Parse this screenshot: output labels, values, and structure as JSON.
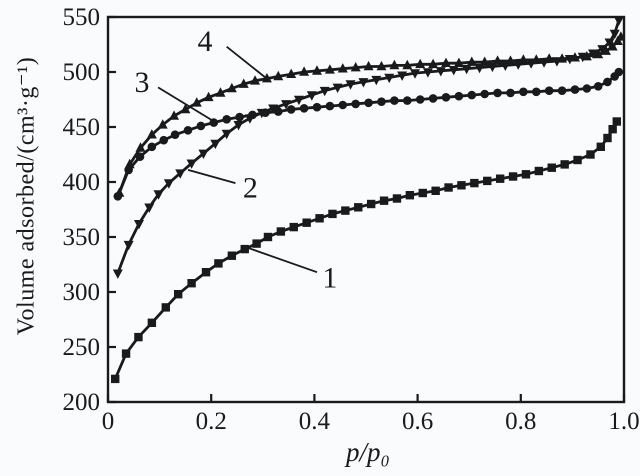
{
  "colors": {
    "ink": "#1a1a1a",
    "background": "#fafbfd"
  },
  "chart_data": {
    "type": "line",
    "title": "",
    "xlabel": "p/p₀",
    "ylabel": "Volume adsorbed/(cm³·g⁻¹)",
    "xlim": [
      0,
      1.0
    ],
    "ylim": [
      200,
      550
    ],
    "x_ticks": [
      0,
      0.2,
      0.4,
      0.6,
      0.8,
      1.0
    ],
    "x_tick_labels": [
      "0",
      "0.2",
      "0.4",
      "0.6",
      "0.8",
      "1.0"
    ],
    "y_ticks": [
      200,
      250,
      300,
      350,
      400,
      450,
      500,
      550
    ],
    "y_tick_labels": [
      "200",
      "250",
      "300",
      "350",
      "400",
      "450",
      "500",
      "550"
    ],
    "grid": false,
    "legend": "none",
    "series": [
      {
        "name": "1",
        "marker": "square",
        "points": [
          [
            0.014,
            221
          ],
          [
            0.035,
            244
          ],
          [
            0.059,
            259
          ],
          [
            0.085,
            272
          ],
          [
            0.112,
            286
          ],
          [
            0.136,
            298
          ],
          [
            0.162,
            308
          ],
          [
            0.19,
            318
          ],
          [
            0.214,
            326
          ],
          [
            0.24,
            333
          ],
          [
            0.265,
            339
          ],
          [
            0.288,
            344
          ],
          [
            0.31,
            350
          ],
          [
            0.335,
            355
          ],
          [
            0.36,
            359
          ],
          [
            0.385,
            363
          ],
          [
            0.41,
            367
          ],
          [
            0.435,
            371
          ],
          [
            0.46,
            374
          ],
          [
            0.485,
            377
          ],
          [
            0.51,
            380
          ],
          [
            0.535,
            383
          ],
          [
            0.56,
            385
          ],
          [
            0.585,
            388
          ],
          [
            0.61,
            390
          ],
          [
            0.635,
            392
          ],
          [
            0.66,
            395
          ],
          [
            0.685,
            397
          ],
          [
            0.71,
            399
          ],
          [
            0.735,
            401
          ],
          [
            0.76,
            403
          ],
          [
            0.785,
            405
          ],
          [
            0.81,
            407
          ],
          [
            0.835,
            410
          ],
          [
            0.86,
            413
          ],
          [
            0.885,
            416
          ],
          [
            0.91,
            420
          ],
          [
            0.935,
            425
          ],
          [
            0.955,
            432
          ],
          [
            0.968,
            440
          ],
          [
            0.978,
            448
          ],
          [
            0.986,
            455
          ]
        ]
      },
      {
        "name": "2",
        "marker": "triangle-down",
        "points": [
          [
            0.019,
            317
          ],
          [
            0.04,
            343
          ],
          [
            0.06,
            362
          ],
          [
            0.08,
            377
          ],
          [
            0.098,
            389
          ],
          [
            0.118,
            399
          ],
          [
            0.14,
            408
          ],
          [
            0.162,
            417
          ],
          [
            0.185,
            426
          ],
          [
            0.208,
            435
          ],
          [
            0.23,
            444
          ],
          [
            0.253,
            452
          ],
          [
            0.275,
            458
          ],
          [
            0.298,
            463
          ],
          [
            0.32,
            467
          ],
          [
            0.345,
            471
          ],
          [
            0.37,
            475
          ],
          [
            0.395,
            479
          ],
          [
            0.42,
            483
          ],
          [
            0.445,
            486
          ],
          [
            0.47,
            489
          ],
          [
            0.495,
            491
          ],
          [
            0.52,
            493
          ],
          [
            0.545,
            495
          ],
          [
            0.57,
            497
          ],
          [
            0.595,
            499
          ],
          [
            0.62,
            500
          ],
          [
            0.645,
            501
          ],
          [
            0.67,
            502
          ],
          [
            0.695,
            503
          ],
          [
            0.72,
            504
          ],
          [
            0.745,
            505
          ],
          [
            0.77,
            506
          ],
          [
            0.795,
            507
          ],
          [
            0.82,
            508
          ],
          [
            0.845,
            509
          ],
          [
            0.87,
            510
          ],
          [
            0.895,
            512
          ],
          [
            0.92,
            514
          ],
          [
            0.94,
            517
          ],
          [
            0.958,
            521
          ],
          [
            0.972,
            527
          ],
          [
            0.982,
            535
          ],
          [
            0.99,
            547
          ],
          [
            0.995,
            556
          ]
        ]
      },
      {
        "name": "3",
        "marker": "circle",
        "points": [
          [
            0.019,
            387
          ],
          [
            0.04,
            411
          ],
          [
            0.062,
            423
          ],
          [
            0.085,
            432
          ],
          [
            0.108,
            438
          ],
          [
            0.13,
            443
          ],
          [
            0.155,
            447
          ],
          [
            0.18,
            451
          ],
          [
            0.205,
            454
          ],
          [
            0.23,
            457
          ],
          [
            0.255,
            459
          ],
          [
            0.28,
            461
          ],
          [
            0.305,
            463
          ],
          [
            0.33,
            464
          ],
          [
            0.355,
            466
          ],
          [
            0.38,
            467
          ],
          [
            0.405,
            468
          ],
          [
            0.43,
            469
          ],
          [
            0.455,
            470
          ],
          [
            0.48,
            471
          ],
          [
            0.505,
            472
          ],
          [
            0.53,
            473
          ],
          [
            0.555,
            474
          ],
          [
            0.58,
            474
          ],
          [
            0.605,
            475
          ],
          [
            0.63,
            476
          ],
          [
            0.655,
            477
          ],
          [
            0.68,
            478
          ],
          [
            0.705,
            479
          ],
          [
            0.73,
            480
          ],
          [
            0.755,
            481
          ],
          [
            0.78,
            481
          ],
          [
            0.805,
            482
          ],
          [
            0.83,
            482
          ],
          [
            0.855,
            483
          ],
          [
            0.88,
            483
          ],
          [
            0.905,
            484
          ],
          [
            0.928,
            485
          ],
          [
            0.95,
            487
          ],
          [
            0.968,
            491
          ],
          [
            0.982,
            496
          ],
          [
            0.99,
            500
          ]
        ]
      },
      {
        "name": "4",
        "marker": "triangle-up",
        "points": [
          [
            0.022,
            390
          ],
          [
            0.042,
            416
          ],
          [
            0.063,
            431
          ],
          [
            0.085,
            443
          ],
          [
            0.106,
            452
          ],
          [
            0.128,
            460
          ],
          [
            0.15,
            466
          ],
          [
            0.172,
            472
          ],
          [
            0.195,
            477
          ],
          [
            0.218,
            481
          ],
          [
            0.24,
            485
          ],
          [
            0.263,
            489
          ],
          [
            0.285,
            492
          ],
          [
            0.308,
            494
          ],
          [
            0.33,
            496
          ],
          [
            0.355,
            498
          ],
          [
            0.38,
            500
          ],
          [
            0.405,
            501
          ],
          [
            0.43,
            502
          ],
          [
            0.455,
            503
          ],
          [
            0.48,
            504
          ],
          [
            0.505,
            505
          ],
          [
            0.53,
            505
          ],
          [
            0.555,
            506
          ],
          [
            0.58,
            506
          ],
          [
            0.605,
            507
          ],
          [
            0.63,
            507
          ],
          [
            0.655,
            508
          ],
          [
            0.68,
            508
          ],
          [
            0.705,
            509
          ],
          [
            0.73,
            509
          ],
          [
            0.755,
            510
          ],
          [
            0.78,
            510
          ],
          [
            0.805,
            511
          ],
          [
            0.83,
            511
          ],
          [
            0.855,
            512
          ],
          [
            0.88,
            512
          ],
          [
            0.905,
            513
          ],
          [
            0.928,
            514
          ],
          [
            0.95,
            516
          ],
          [
            0.965,
            519
          ],
          [
            0.978,
            523
          ],
          [
            0.988,
            528
          ],
          [
            0.994,
            532
          ]
        ]
      }
    ],
    "annotations": [
      {
        "label": "1",
        "label_x": 0.43,
        "label_y": 313,
        "line": [
          [
            0.405,
            318
          ],
          [
            0.272,
            340
          ]
        ]
      },
      {
        "label": "2",
        "label_x": 0.276,
        "label_y": 395,
        "line": [
          [
            0.247,
            399
          ],
          [
            0.155,
            411
          ]
        ]
      },
      {
        "label": "3",
        "label_x": 0.066,
        "label_y": 491,
        "line": [
          [
            0.097,
            486
          ],
          [
            0.202,
            456
          ]
        ]
      },
      {
        "label": "4",
        "label_x": 0.188,
        "label_y": 528,
        "line": [
          [
            0.23,
            523
          ],
          [
            0.305,
            495
          ]
        ]
      }
    ]
  }
}
